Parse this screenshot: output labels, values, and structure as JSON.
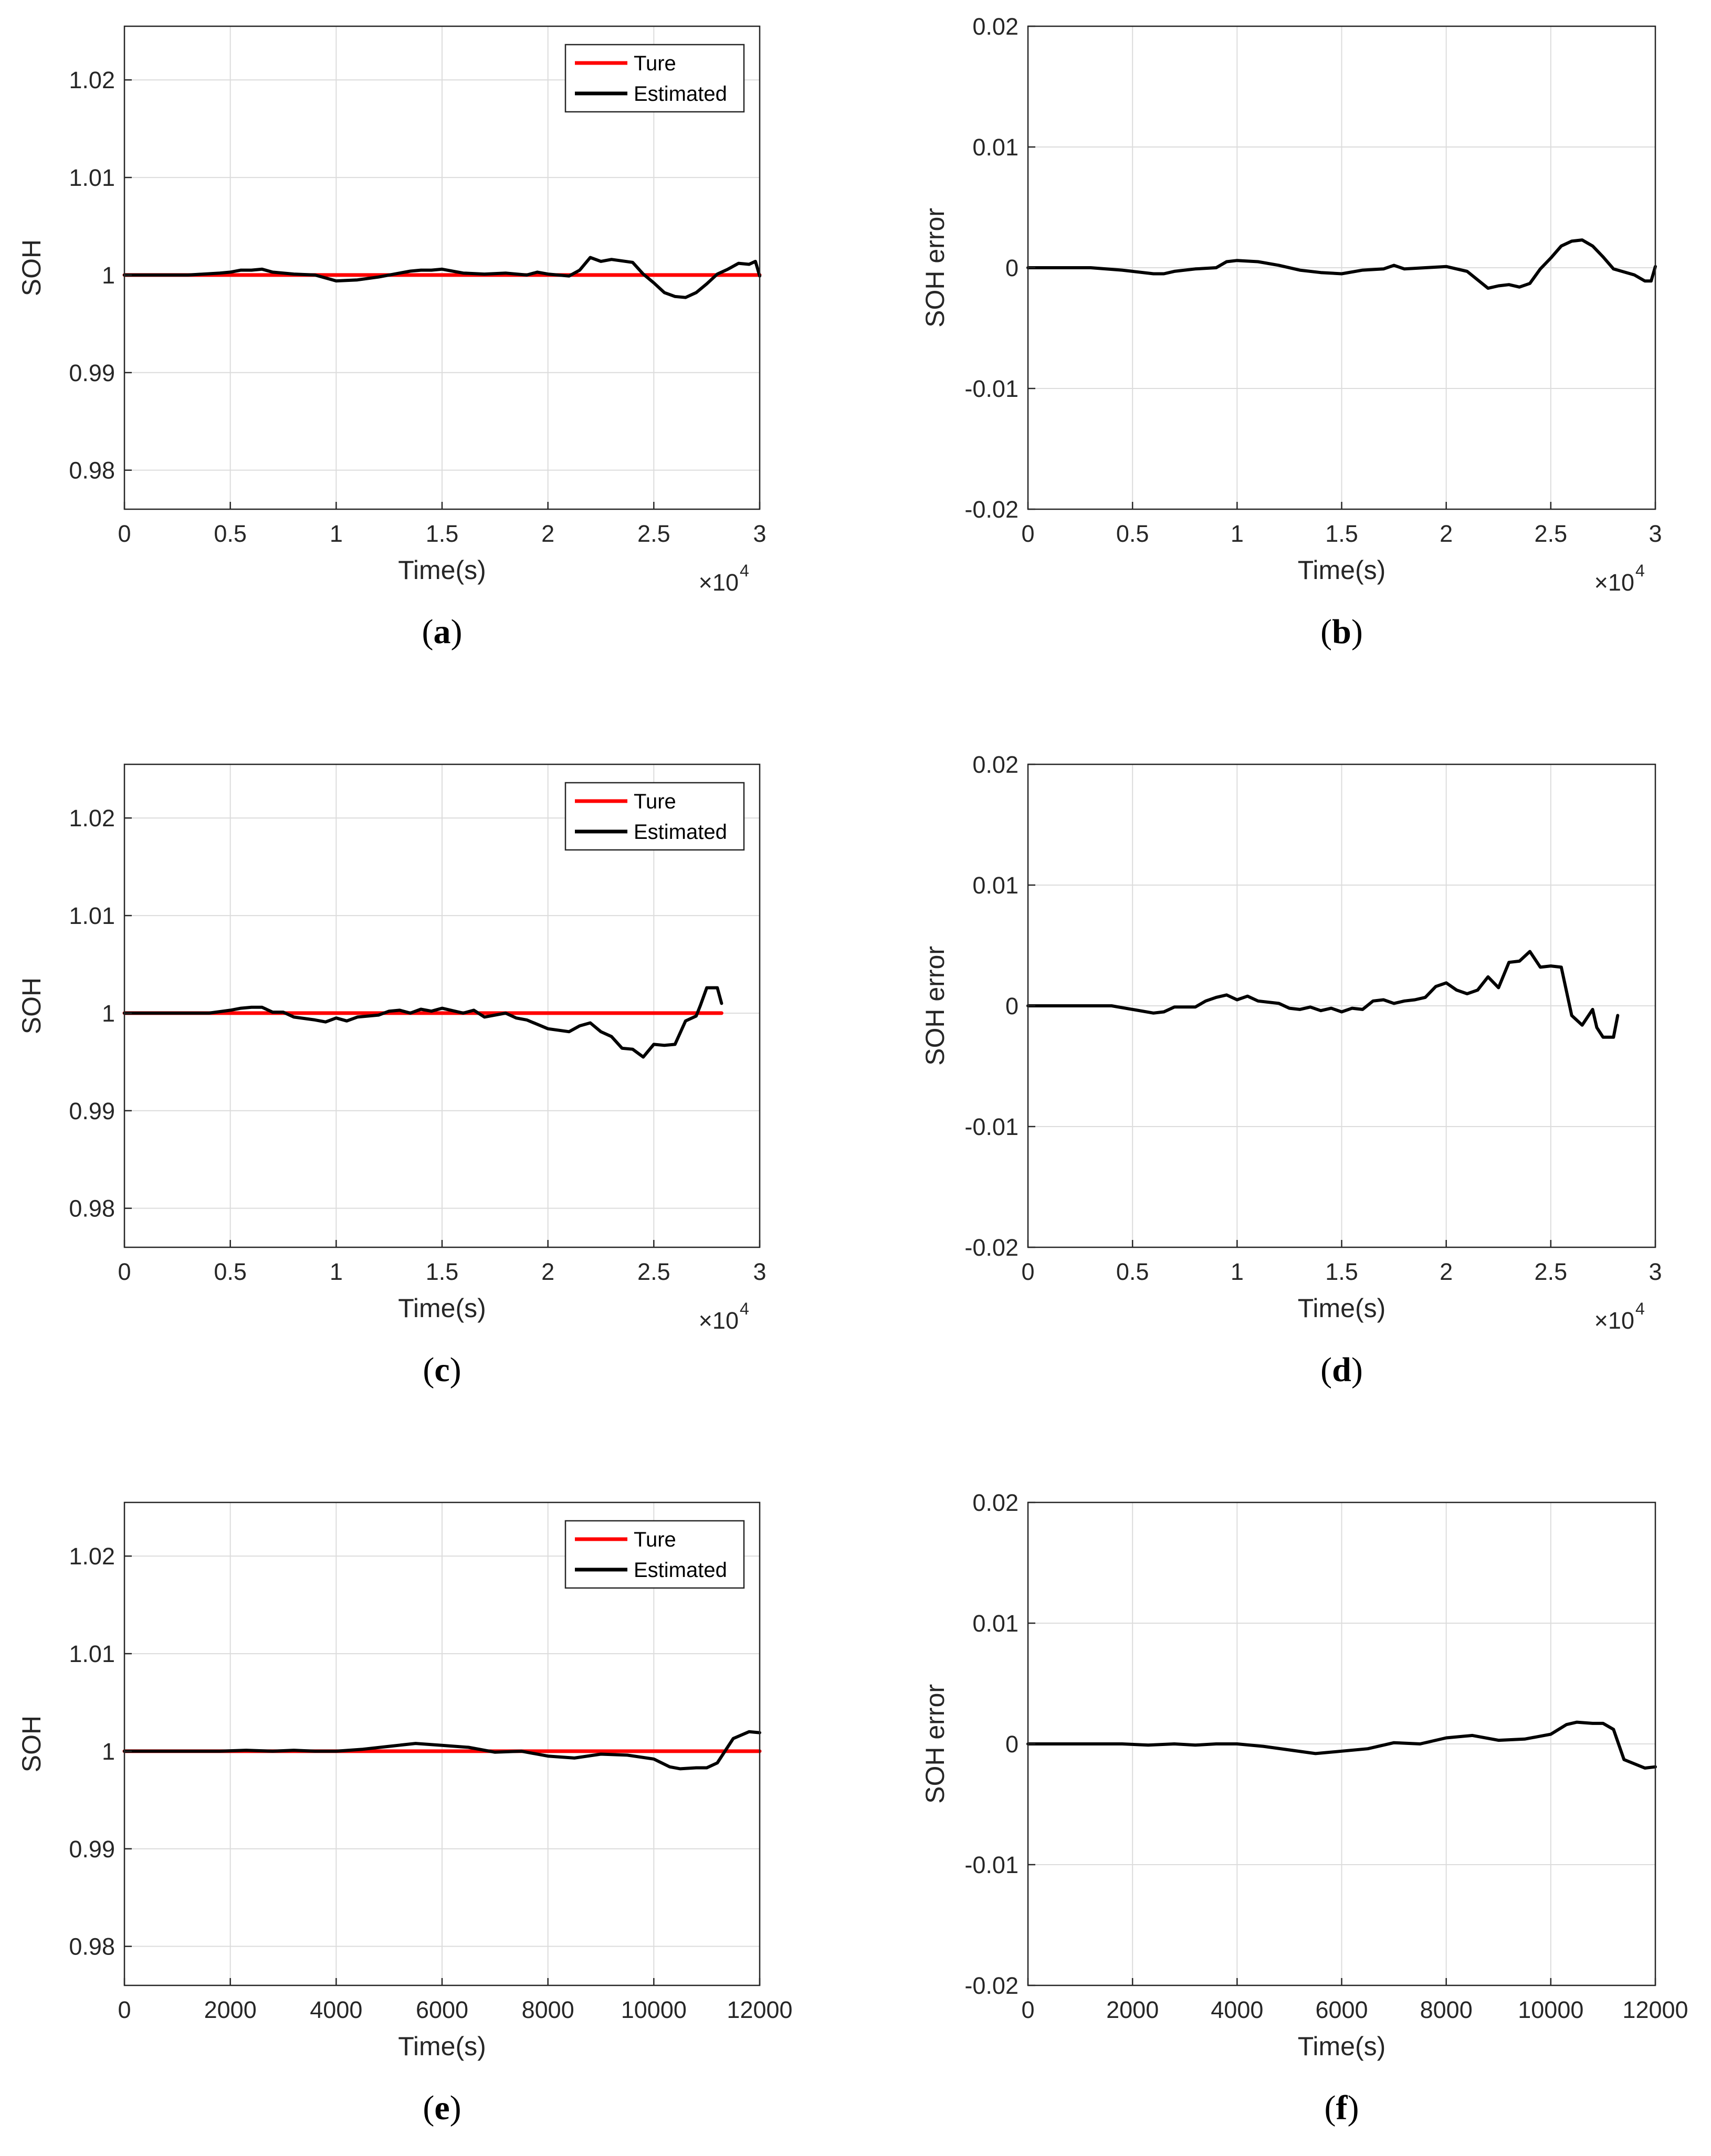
{
  "figure": {
    "colors": {
      "true_line": "#ff0000",
      "estimated_line": "#000000",
      "grid": "#dcdcdc",
      "axis": "#262626"
    }
  },
  "chart_data": [
    {
      "id": "a",
      "type": "line",
      "caption_letter": "a",
      "ylabel": "SOH",
      "xlabel": "Time(s)",
      "xlim": [
        0,
        30000
      ],
      "ylim": [
        0.976,
        1.0255
      ],
      "x_tick_values": [
        0,
        5000,
        10000,
        15000,
        20000,
        25000,
        30000
      ],
      "x_tick_labels": [
        "0",
        "0.5",
        "1",
        "1.5",
        "2",
        "2.5",
        "3"
      ],
      "x_multiplier": {
        "base": "×10",
        "exponent": "4"
      },
      "y_tick_values": [
        0.98,
        0.99,
        1.0,
        1.01,
        1.02
      ],
      "y_tick_labels": [
        "0.98",
        "0.99",
        "1",
        "1.01",
        "1.02"
      ],
      "grid": true,
      "legend": {
        "position": "top-right",
        "entries": [
          "Ture",
          "Estimated"
        ]
      },
      "series": [
        {
          "name": "Ture",
          "color": "#ff0000",
          "x": [
            0,
            30000
          ],
          "y": [
            1.0,
            1.0
          ]
        },
        {
          "name": "Estimated",
          "color": "#000000",
          "x": [
            0,
            3000,
            4500,
            5000,
            5500,
            6000,
            6500,
            7000,
            8000,
            9000,
            10000,
            11000,
            12000,
            13000,
            13500,
            14000,
            14500,
            15000,
            16000,
            17000,
            18000,
            19000,
            19500,
            20000,
            21000,
            21500,
            22000,
            22500,
            23000,
            24000,
            24500,
            25000,
            25500,
            26000,
            26500,
            27000,
            27500,
            28000,
            28500,
            29000,
            29500,
            29800,
            30000
          ],
          "y": [
            1.0,
            1.0,
            1.0002,
            1.0003,
            1.0005,
            1.0005,
            1.0006,
            1.0003,
            1.0001,
            1.0,
            0.9994,
            0.9995,
            0.9998,
            1.0002,
            1.0004,
            1.0005,
            1.0005,
            1.0006,
            1.0002,
            1.0001,
            1.0002,
            1.0,
            1.0003,
            1.0001,
            0.9999,
            1.0005,
            1.0018,
            1.0014,
            1.0016,
            1.0013,
            1.0001,
            0.9992,
            0.9982,
            0.9978,
            0.9977,
            0.9982,
            0.9991,
            1.0001,
            1.0006,
            1.0012,
            1.0011,
            1.0014,
            0.9999
          ]
        }
      ]
    },
    {
      "id": "b",
      "type": "line",
      "caption_letter": "b",
      "ylabel": "SOH error",
      "xlabel": "Time(s)",
      "xlim": [
        0,
        30000
      ],
      "ylim": [
        -0.02,
        0.02
      ],
      "x_tick_values": [
        0,
        5000,
        10000,
        15000,
        20000,
        25000,
        30000
      ],
      "x_tick_labels": [
        "0",
        "0.5",
        "1",
        "1.5",
        "2",
        "2.5",
        "3"
      ],
      "x_multiplier": {
        "base": "×10",
        "exponent": "4"
      },
      "y_tick_values": [
        -0.02,
        -0.01,
        0,
        0.01,
        0.02
      ],
      "y_tick_labels": [
        "-0.02",
        "-0.01",
        "0",
        "0.01",
        "0.02"
      ],
      "grid": true,
      "series": [
        {
          "name": "SOH error",
          "color": "#000000",
          "x": [
            0,
            3000,
            4500,
            5000,
            6000,
            6500,
            7000,
            8000,
            9000,
            9500,
            10000,
            11000,
            12000,
            13000,
            14000,
            15000,
            16000,
            17000,
            17500,
            18000,
            19000,
            20000,
            21000,
            22000,
            22500,
            23000,
            23500,
            24000,
            24500,
            25000,
            25500,
            26000,
            26500,
            27000,
            27500,
            28000,
            29000,
            29500,
            29800,
            30000
          ],
          "y": [
            0,
            0,
            -0.0002,
            -0.0003,
            -0.0005,
            -0.0005,
            -0.0003,
            -0.0001,
            0.0,
            0.0005,
            0.0006,
            0.0005,
            0.0002,
            -0.0002,
            -0.0004,
            -0.0005,
            -0.0002,
            -0.0001,
            0.0002,
            -0.0001,
            0.0,
            0.0001,
            -0.0003,
            -0.0017,
            -0.0015,
            -0.0014,
            -0.0016,
            -0.0013,
            -0.0001,
            0.0008,
            0.0018,
            0.0022,
            0.0023,
            0.0018,
            0.0009,
            -0.0001,
            -0.0006,
            -0.0011,
            -0.0011,
            0.0001
          ]
        }
      ]
    },
    {
      "id": "c",
      "type": "line",
      "caption_letter": "c",
      "ylabel": "SOH",
      "xlabel": "Time(s)",
      "xlim": [
        0,
        30000
      ],
      "ylim": [
        0.976,
        1.0255
      ],
      "x_tick_values": [
        0,
        5000,
        10000,
        15000,
        20000,
        25000,
        30000
      ],
      "x_tick_labels": [
        "0",
        "0.5",
        "1",
        "1.5",
        "2",
        "2.5",
        "3"
      ],
      "x_multiplier": {
        "base": "×10",
        "exponent": "4"
      },
      "y_tick_values": [
        0.98,
        0.99,
        1.0,
        1.01,
        1.02
      ],
      "y_tick_labels": [
        "0.98",
        "0.99",
        "1",
        "1.01",
        "1.02"
      ],
      "grid": true,
      "legend": {
        "position": "top-right",
        "entries": [
          "Ture",
          "Estimated"
        ]
      },
      "series": [
        {
          "name": "Ture",
          "color": "#ff0000",
          "x": [
            0,
            28200
          ],
          "y": [
            1.0,
            1.0
          ]
        },
        {
          "name": "Estimated",
          "color": "#000000",
          "x": [
            0,
            4000,
            5000,
            5500,
            6000,
            6500,
            7000,
            7500,
            8000,
            9000,
            9500,
            10000,
            10500,
            11000,
            12000,
            12500,
            13000,
            13500,
            14000,
            14500,
            15000,
            16000,
            16500,
            17000,
            17500,
            18000,
            18500,
            19000,
            20000,
            21000,
            21500,
            22000,
            22500,
            23000,
            23500,
            24000,
            24500,
            25000,
            25500,
            26000,
            26500,
            27000,
            27200,
            27500,
            28000,
            28200
          ],
          "y": [
            1.0,
            1.0,
            1.0003,
            1.0005,
            1.0006,
            1.0006,
            1.0001,
            1.0001,
            0.9996,
            0.9993,
            0.9991,
            0.9995,
            0.9992,
            0.9996,
            0.9998,
            1.0002,
            1.0003,
            1.0,
            1.0004,
            1.0002,
            1.0005,
            1.0,
            1.0003,
            0.9996,
            0.9998,
            1.0,
            0.9995,
            0.9993,
            0.9984,
            0.9981,
            0.9987,
            0.999,
            0.9981,
            0.9976,
            0.9964,
            0.9963,
            0.9955,
            0.9968,
            0.9967,
            0.9968,
            0.9992,
            0.9997,
            1.0008,
            1.0026,
            1.0026,
            1.001
          ]
        }
      ]
    },
    {
      "id": "d",
      "type": "line",
      "caption_letter": "d",
      "ylabel": "SOH error",
      "xlabel": "Time(s)",
      "xlim": [
        0,
        30000
      ],
      "ylim": [
        -0.02,
        0.02
      ],
      "x_tick_values": [
        0,
        5000,
        10000,
        15000,
        20000,
        25000,
        30000
      ],
      "x_tick_labels": [
        "0",
        "0.5",
        "1",
        "1.5",
        "2",
        "2.5",
        "3"
      ],
      "x_multiplier": {
        "base": "×10",
        "exponent": "4"
      },
      "y_tick_values": [
        -0.02,
        -0.01,
        0,
        0.01,
        0.02
      ],
      "y_tick_labels": [
        "-0.02",
        "-0.01",
        "0",
        "0.01",
        "0.02"
      ],
      "grid": true,
      "series": [
        {
          "name": "SOH error",
          "color": "#000000",
          "x": [
            0,
            4000,
            5000,
            6000,
            6500,
            7000,
            8000,
            8500,
            9000,
            9500,
            10000,
            10500,
            11000,
            12000,
            12500,
            13000,
            13500,
            14000,
            14500,
            15000,
            15500,
            16000,
            16500,
            17000,
            17500,
            18000,
            18500,
            19000,
            19500,
            20000,
            20500,
            21000,
            21500,
            22000,
            22500,
            23000,
            23500,
            24000,
            24500,
            25000,
            25500,
            26000,
            26500,
            27000,
            27200,
            27500,
            28000,
            28200
          ],
          "y": [
            0,
            0,
            -0.0003,
            -0.0006,
            -0.0005,
            -0.0001,
            -0.0001,
            0.0004,
            0.0007,
            0.0009,
            0.0005,
            0.0008,
            0.0004,
            0.0002,
            -0.0002,
            -0.0003,
            -0.0001,
            -0.0004,
            -0.0002,
            -0.0005,
            -0.0002,
            -0.0003,
            0.0004,
            0.0005,
            0.0002,
            0.0004,
            0.0005,
            0.0007,
            0.0016,
            0.0019,
            0.0013,
            0.001,
            0.0013,
            0.0024,
            0.0015,
            0.0036,
            0.0037,
            0.0045,
            0.0032,
            0.0033,
            0.0032,
            -0.0008,
            -0.0016,
            -0.0003,
            -0.0018,
            -0.0026,
            -0.0026,
            -0.0008
          ]
        }
      ]
    },
    {
      "id": "e",
      "type": "line",
      "caption_letter": "e",
      "ylabel": "SOH",
      "xlabel": "Time(s)",
      "xlim": [
        0,
        12000
      ],
      "ylim": [
        0.976,
        1.0255
      ],
      "x_tick_values": [
        0,
        2000,
        4000,
        6000,
        8000,
        10000,
        12000
      ],
      "x_tick_labels": [
        "0",
        "2000",
        "4000",
        "6000",
        "8000",
        "10000",
        "12000"
      ],
      "y_tick_values": [
        0.98,
        0.99,
        1.0,
        1.01,
        1.02
      ],
      "y_tick_labels": [
        "0.98",
        "0.99",
        "1",
        "1.01",
        "1.02"
      ],
      "grid": true,
      "legend": {
        "position": "top-right",
        "entries": [
          "Ture",
          "Estimated"
        ]
      },
      "series": [
        {
          "name": "Ture",
          "color": "#ff0000",
          "x": [
            0,
            12000
          ],
          "y": [
            1.0,
            1.0
          ]
        },
        {
          "name": "Estimated",
          "color": "#000000",
          "x": [
            0,
            1800,
            2300,
            2800,
            3200,
            3600,
            4000,
            4500,
            5000,
            5500,
            6000,
            6500,
            7000,
            7500,
            8000,
            8500,
            9000,
            9500,
            10000,
            10300,
            10500,
            10800,
            11000,
            11200,
            11500,
            11800,
            12000
          ],
          "y": [
            1.0,
            1.0,
            1.0001,
            1.0,
            1.0001,
            1.0,
            1.0,
            1.0002,
            1.0005,
            1.0008,
            1.0006,
            1.0004,
            0.9999,
            1.0,
            0.9995,
            0.9993,
            0.9997,
            0.9996,
            0.9992,
            0.9984,
            0.9982,
            0.9983,
            0.9983,
            0.9988,
            1.0013,
            1.002,
            1.0019
          ]
        }
      ]
    },
    {
      "id": "f",
      "type": "line",
      "caption_letter": "f",
      "ylabel": "SOH error",
      "xlabel": "Time(s)",
      "xlim": [
        0,
        12000
      ],
      "ylim": [
        -0.02,
        0.02
      ],
      "x_tick_values": [
        0,
        2000,
        4000,
        6000,
        8000,
        10000,
        12000
      ],
      "x_tick_labels": [
        "0",
        "2000",
        "4000",
        "6000",
        "8000",
        "10000",
        "12000"
      ],
      "y_tick_values": [
        -0.02,
        -0.01,
        0,
        0.01,
        0.02
      ],
      "y_tick_labels": [
        "-0.02",
        "-0.01",
        "0",
        "0.01",
        "0.02"
      ],
      "grid": true,
      "series": [
        {
          "name": "SOH error",
          "color": "#000000",
          "x": [
            0,
            1800,
            2300,
            2800,
            3200,
            3600,
            4000,
            4500,
            5000,
            5500,
            6000,
            6500,
            7000,
            7500,
            8000,
            8500,
            9000,
            9500,
            10000,
            10300,
            10500,
            10800,
            11000,
            11200,
            11400,
            11800,
            12000
          ],
          "y": [
            0,
            0,
            -0.0001,
            0.0,
            -0.0001,
            0.0,
            0.0,
            -0.0002,
            -0.0005,
            -0.0008,
            -0.0006,
            -0.0004,
            0.0001,
            0.0,
            0.0005,
            0.0007,
            0.0003,
            0.0004,
            0.0008,
            0.0016,
            0.0018,
            0.0017,
            0.0017,
            0.0012,
            -0.0013,
            -0.002,
            -0.0019
          ]
        }
      ]
    }
  ]
}
